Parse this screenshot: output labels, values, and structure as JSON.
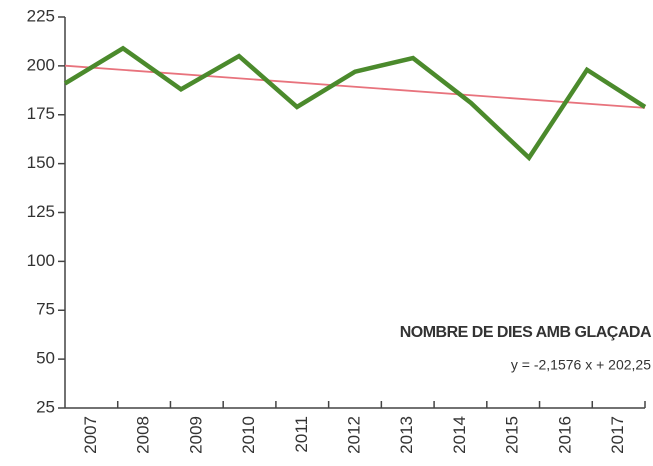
{
  "chart_data": {
    "type": "line",
    "categories": [
      "2007",
      "2008",
      "2009",
      "2010",
      "2011",
      "2012",
      "2013",
      "2014",
      "2015",
      "2016",
      "2017"
    ],
    "series": [
      {
        "name": "NOMBRE DE DIES AMB GLAÇADA",
        "color": "#4b8a2c",
        "values": [
          191,
          209,
          188,
          205,
          179,
          197,
          204,
          181,
          153,
          198,
          179
        ]
      }
    ],
    "trend": {
      "slope": -2.1576,
      "intercept": 202.25,
      "color": "#e8737d",
      "label": "y = -2,1576 x + 202,25"
    },
    "ylim": [
      25,
      225
    ],
    "yticks": [
      25,
      50,
      75,
      100,
      125,
      150,
      175,
      200,
      225
    ]
  }
}
